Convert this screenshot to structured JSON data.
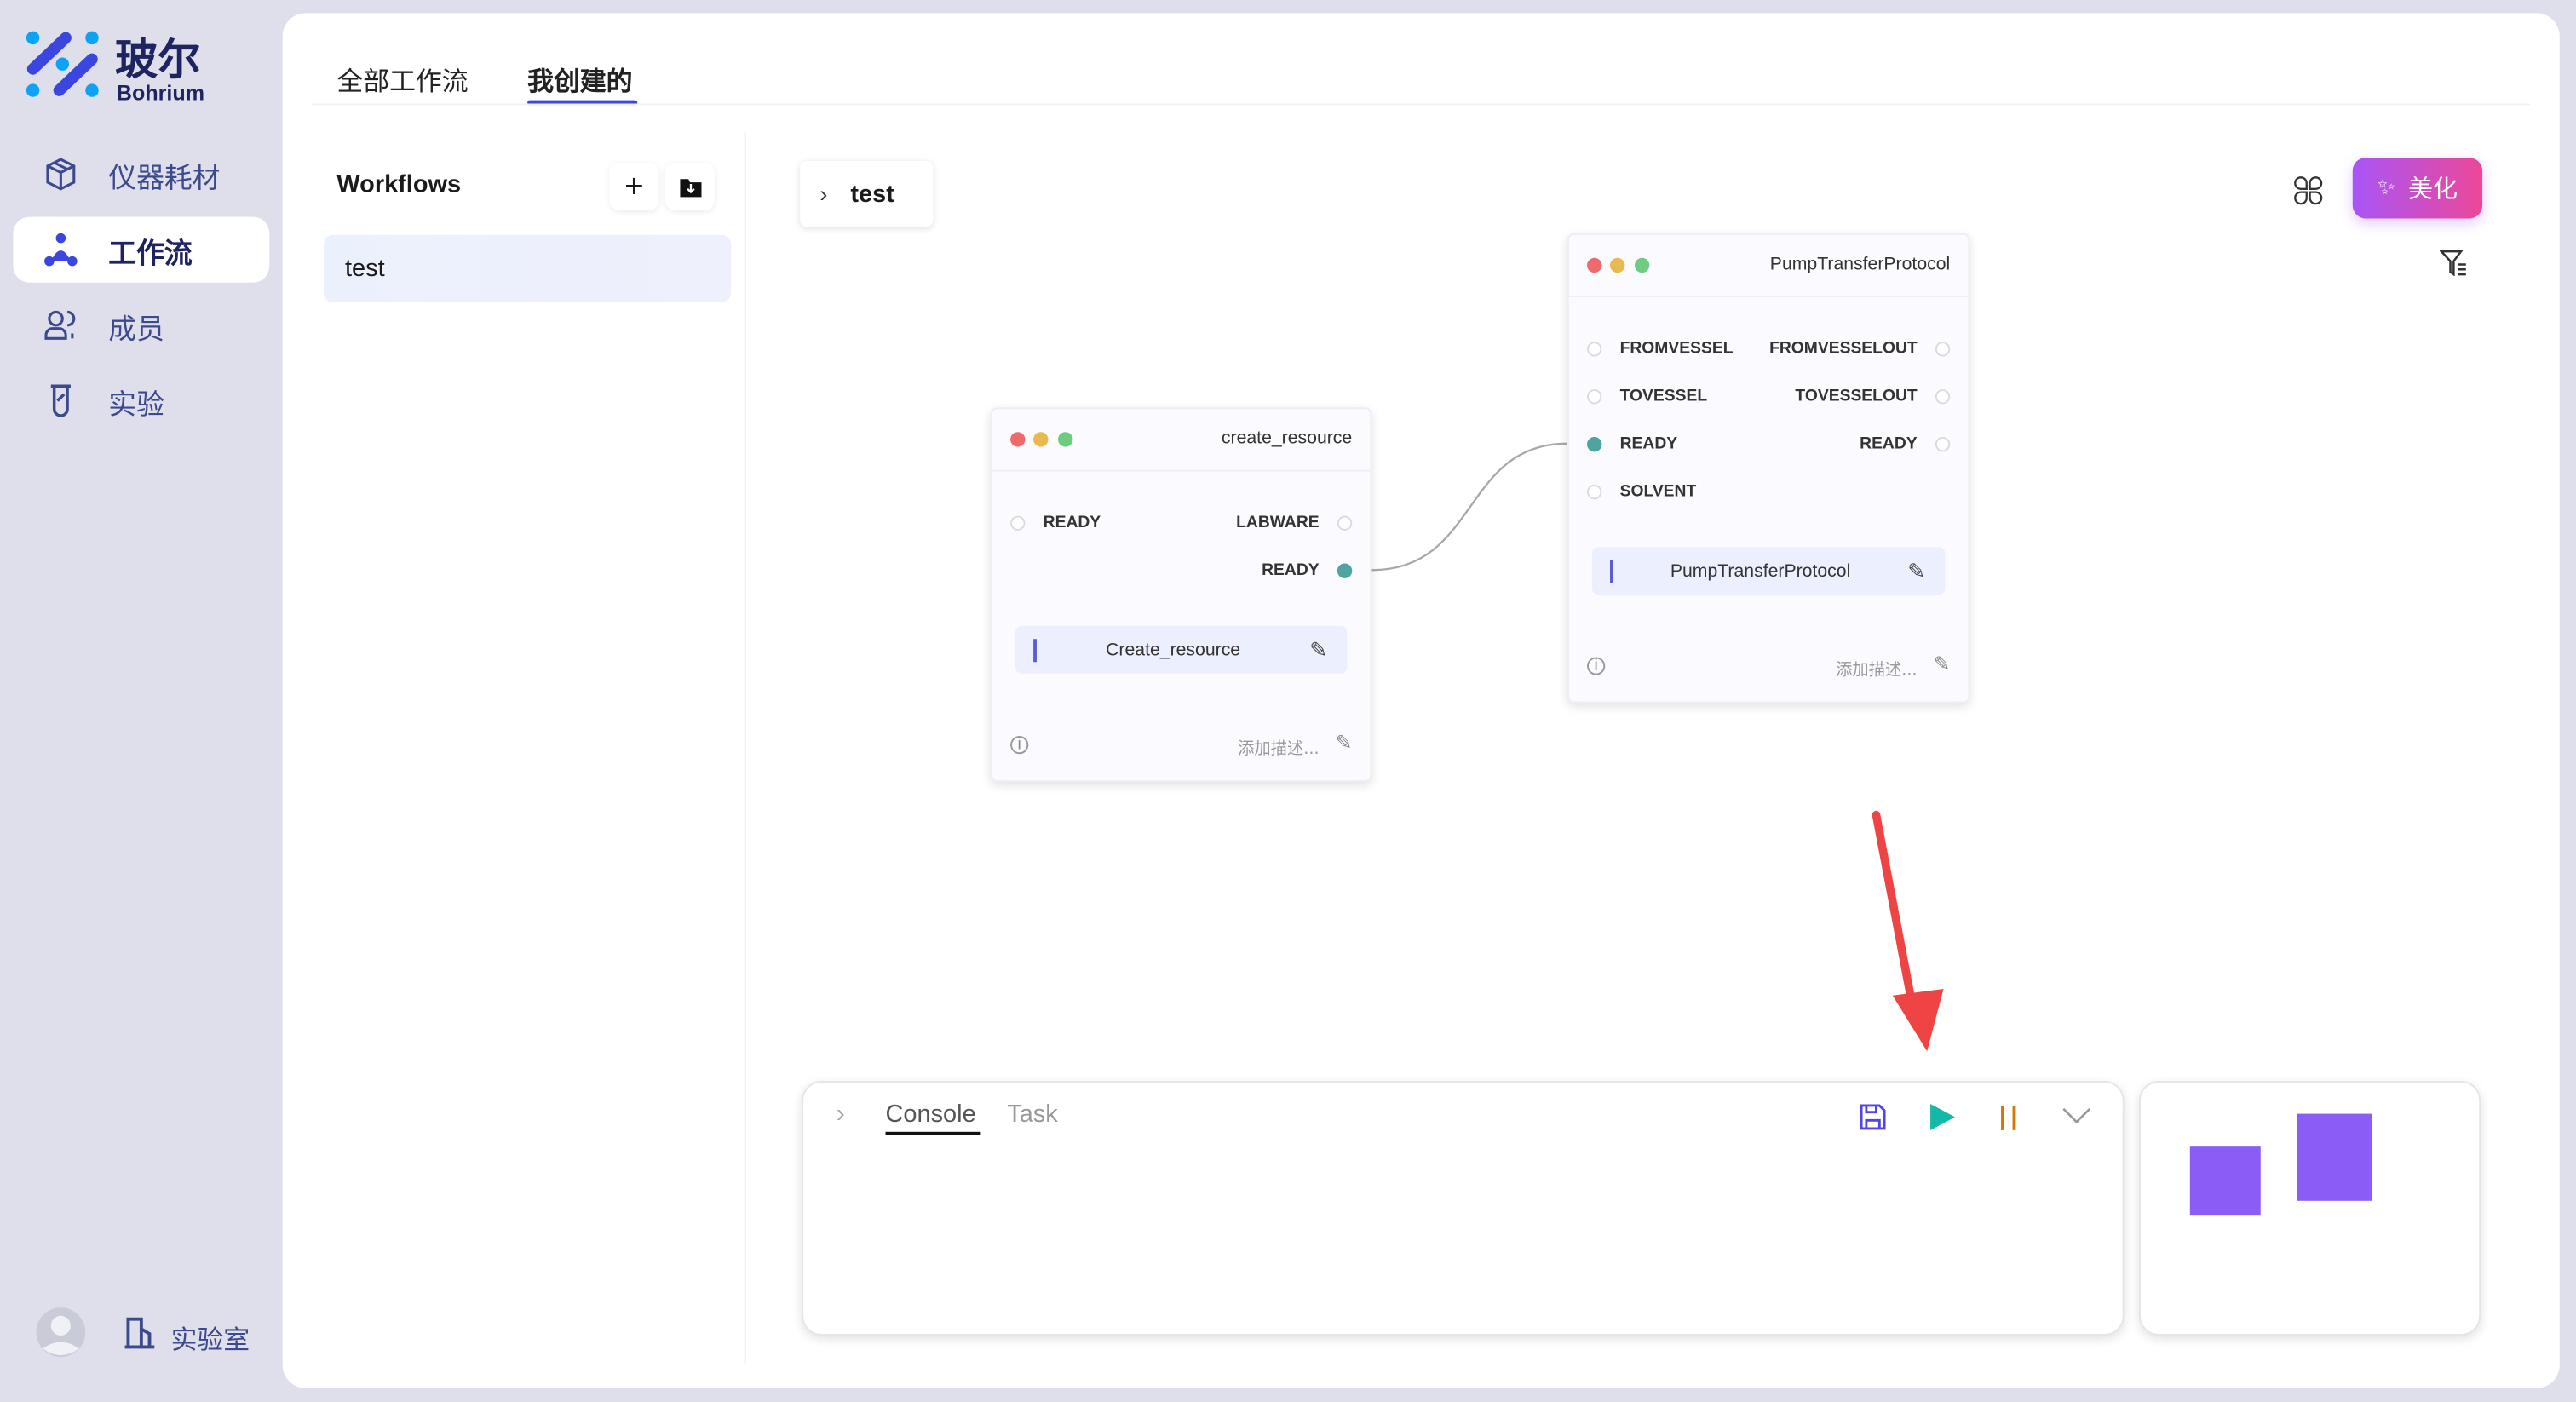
{
  "brand": {
    "name": "玻尔",
    "sub": "Bohrium",
    "colors": {
      "primary": "#3b46e0",
      "accent": "#0aa3f5"
    }
  },
  "sidebar": {
    "items": [
      {
        "label": "仪器耗材",
        "icon": "box-icon",
        "active": false
      },
      {
        "label": "工作流",
        "icon": "workflow-icon",
        "active": true
      },
      {
        "label": "成员",
        "icon": "members-icon",
        "active": false
      },
      {
        "label": "实验",
        "icon": "test-tube-icon",
        "active": false
      }
    ],
    "footer": {
      "lab_label": "实验室"
    }
  },
  "tabs": [
    {
      "label": "全部工作流",
      "active": false
    },
    {
      "label": "我创建的",
      "active": true
    }
  ],
  "workflows": {
    "title": "Workflows",
    "items": [
      {
        "label": "test",
        "selected": true
      }
    ]
  },
  "canvas": {
    "breadcrumb": "test",
    "beautify_label": "美化",
    "nodes": [
      {
        "title": "create_resource",
        "inputs": [
          {
            "label": "READY",
            "connected": false
          }
        ],
        "outputs": [
          {
            "label": "LABWARE",
            "connected": false
          },
          {
            "label": "READY",
            "connected": true
          }
        ],
        "function": "Create_resource",
        "desc_placeholder": "添加描述..."
      },
      {
        "title": "PumpTransferProtocol",
        "inputs": [
          {
            "label": "FROMVESSEL",
            "connected": false
          },
          {
            "label": "TOVESSEL",
            "connected": false
          },
          {
            "label": "READY",
            "connected": true
          },
          {
            "label": "SOLVENT",
            "connected": false
          }
        ],
        "outputs": [
          {
            "label": "FROMVESSELOUT",
            "connected": false
          },
          {
            "label": "TOVESSELOUT",
            "connected": false
          },
          {
            "label": "READY",
            "connected": false
          }
        ],
        "function": "PumpTransferProtocol",
        "desc_placeholder": "添加描述..."
      }
    ]
  },
  "console": {
    "tabs": [
      {
        "label": "Console",
        "active": true
      },
      {
        "label": "Task",
        "active": false
      }
    ]
  }
}
